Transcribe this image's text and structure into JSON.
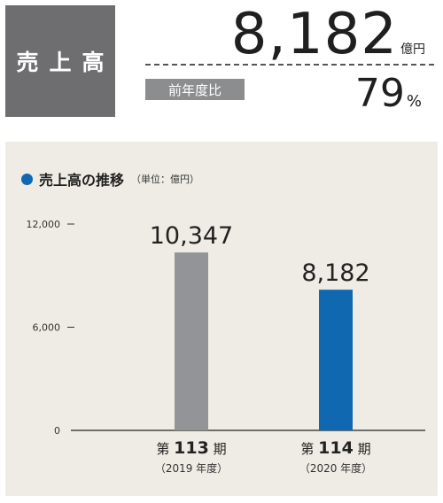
{
  "header": {
    "label": "売上高",
    "value": "8,182",
    "value_unit": "億円",
    "yoy_label": "前年度比",
    "yoy_value": "79",
    "yoy_unit": "%"
  },
  "colors": {
    "accent": "#1068b0",
    "previous": "#939497",
    "panel": "#eeece4",
    "label_box": "#6e6e70"
  },
  "chart_data": {
    "type": "bar",
    "title": "売上高の推移",
    "subtitle": "（単位：億円）",
    "unit": "億円",
    "categories": [
      {
        "period": "第",
        "num": "113",
        "suffix": "期",
        "year": "（2019 年度）"
      },
      {
        "period": "第",
        "num": "114",
        "suffix": "期",
        "year": "（2020 年度）"
      }
    ],
    "values": [
      10347,
      8182
    ],
    "value_labels": [
      "10,347",
      "8,182"
    ],
    "yticks": [
      0,
      6000,
      12000
    ],
    "ytick_labels": [
      "0",
      "6,000",
      "12,000"
    ],
    "ylim": [
      0,
      12000
    ],
    "bar_colors": [
      "#939497",
      "#1068b0"
    ],
    "grid": false,
    "legend": "none"
  }
}
